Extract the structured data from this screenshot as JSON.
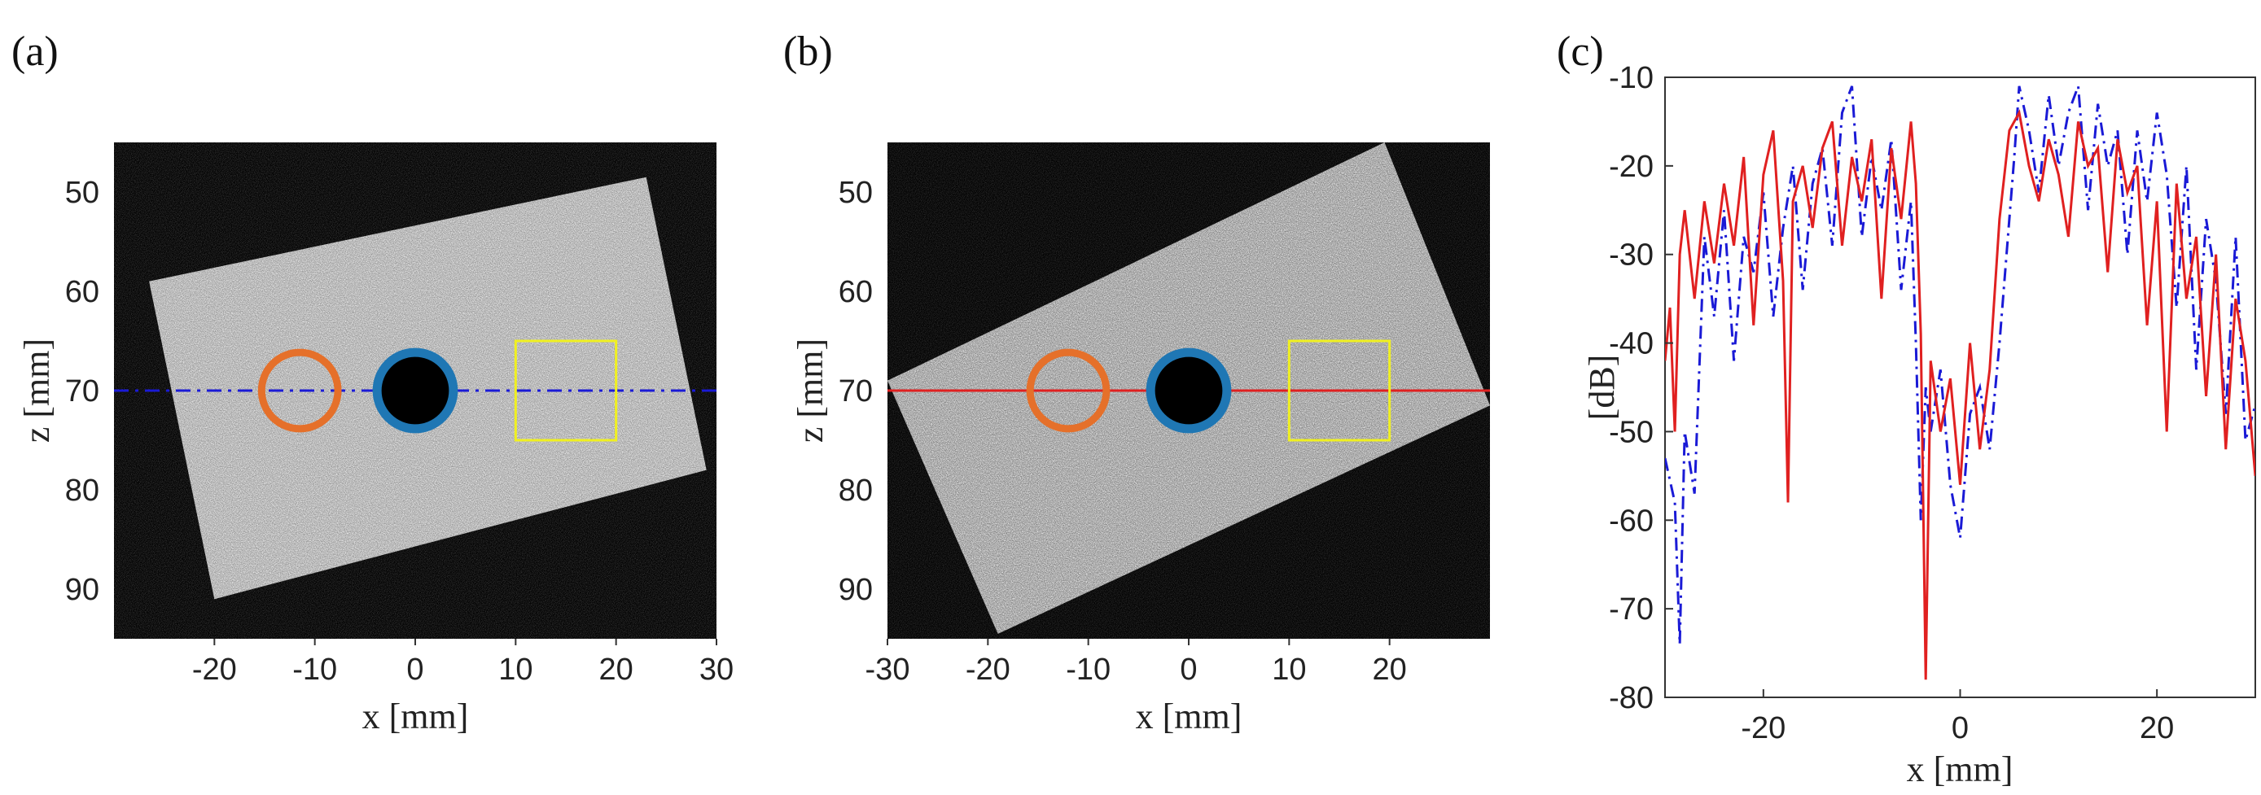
{
  "figure": {
    "panels": [
      {
        "label": "(a)",
        "xlabel": "x [mm]",
        "ylabel": "z [mm]"
      },
      {
        "label": "(b)",
        "xlabel": "x [mm]",
        "ylabel": "z [mm]"
      },
      {
        "label": "(c)",
        "xlabel": "x [mm]",
        "ylabel": "[dB]"
      }
    ]
  },
  "chart_data": [
    {
      "type": "heatmap",
      "panel": "(a)",
      "description_type": "ultrasound B-mode image (grayscale speckle), rotated phantom",
      "xlabel": "x [mm]",
      "ylabel": "z [mm]",
      "xlim": [
        -30,
        30
      ],
      "ylim": [
        95,
        45
      ],
      "xticks": [
        -20,
        -10,
        0,
        10,
        20,
        30
      ],
      "yticks": [
        50,
        60,
        70,
        80,
        90
      ],
      "phantom_corners_mm": [
        [
          -26.5,
          59
        ],
        [
          23,
          48.5
        ],
        [
          29,
          78
        ],
        [
          -20,
          91
        ]
      ],
      "overlays": {
        "scan_line": {
          "z": 70,
          "color": "#1a1ad6",
          "style": "dash-dot"
        },
        "orange_ring": {
          "cx": -11.5,
          "cz": 70,
          "r": 3.8,
          "color": "#e5702a"
        },
        "blue_ring": {
          "cx": 0,
          "cz": 70,
          "r": 3.8,
          "color": "#1f77b4"
        },
        "yellow_box": {
          "x0": 10,
          "x1": 20,
          "z0": 65,
          "z1": 75,
          "color": "#f0f020"
        }
      }
    },
    {
      "type": "heatmap",
      "panel": "(b)",
      "description_type": "ultrasound B-mode image (grayscale speckle), rotated phantom",
      "xlabel": "x [mm]",
      "ylabel": "z [mm]",
      "xlim": [
        -30,
        30
      ],
      "ylim": [
        95,
        45
      ],
      "xticks": [
        -30,
        -20,
        -10,
        0,
        10,
        20
      ],
      "yticks": [
        50,
        60,
        70,
        80,
        90
      ],
      "phantom_corners_mm": [
        [
          -30,
          69
        ],
        [
          19.5,
          45
        ],
        [
          30,
          71.5
        ],
        [
          -19,
          94.5
        ]
      ],
      "overlays": {
        "scan_line": {
          "z": 70,
          "color": "#e02020",
          "style": "solid"
        },
        "orange_ring": {
          "cx": -12,
          "cz": 70,
          "r": 3.8,
          "color": "#e5702a"
        },
        "blue_ring": {
          "cx": 0,
          "cz": 70,
          "r": 3.8,
          "color": "#1f77b4"
        },
        "yellow_box": {
          "x0": 10,
          "x1": 20,
          "z0": 65,
          "z1": 75,
          "color": "#f0f020"
        }
      }
    },
    {
      "type": "line",
      "panel": "(c)",
      "xlabel": "x [mm]",
      "ylabel": "[dB]",
      "xlim": [
        -30,
        30
      ],
      "ylim": [
        -80,
        -10
      ],
      "xticks": [
        -20,
        0,
        20
      ],
      "yticks": [
        -10,
        -20,
        -30,
        -40,
        -50,
        -60,
        -70,
        -80
      ],
      "series": [
        {
          "color": "#1a1ad6",
          "style": "dash-dot",
          "x": [
            -30,
            -29,
            -28.5,
            -28,
            -27,
            -26,
            -25,
            -24,
            -23,
            -22,
            -21,
            -20,
            -19,
            -18,
            -17,
            -16,
            -15,
            -14,
            -13,
            -12,
            -11,
            -10,
            -9,
            -8,
            -7,
            -6,
            -5,
            -4.5,
            -4,
            -3.5,
            -3,
            -2,
            -1,
            0,
            1,
            2,
            3,
            4,
            5,
            5.5,
            6,
            7,
            8,
            9,
            10,
            11,
            12,
            13,
            14,
            15,
            16,
            17,
            18,
            19,
            20,
            21,
            22,
            23,
            24,
            25,
            26,
            27,
            28,
            29,
            30
          ],
          "y": [
            -53,
            -58,
            -74,
            -50,
            -57,
            -28,
            -37,
            -25,
            -42,
            -28,
            -32,
            -23,
            -37,
            -27,
            -20,
            -34,
            -22,
            -18,
            -29,
            -14,
            -11,
            -28,
            -19,
            -25,
            -17,
            -34,
            -24,
            -40,
            -60,
            -45,
            -50,
            -43,
            -56,
            -62,
            -48,
            -45,
            -52,
            -40,
            -26,
            -19,
            -11,
            -16,
            -23,
            -12,
            -20,
            -14,
            -11,
            -25,
            -13,
            -20,
            -16,
            -30,
            -16,
            -24,
            -14,
            -21,
            -36,
            -20,
            -43,
            -26,
            -33,
            -48,
            -28,
            -51,
            -47
          ]
        },
        {
          "color": "#e02020",
          "style": "solid",
          "x": [
            -30,
            -29.5,
            -29,
            -28.5,
            -28,
            -27,
            -26,
            -25,
            -24,
            -23,
            -22,
            -21,
            -20,
            -19,
            -18,
            -17.5,
            -17,
            -16,
            -15,
            -14,
            -13,
            -12,
            -11,
            -10,
            -9,
            -8,
            -7,
            -6,
            -5,
            -4.5,
            -4,
            -3.5,
            -3,
            -2,
            -1,
            0,
            1,
            2,
            3,
            4,
            5,
            6,
            7,
            8,
            9,
            10,
            11,
            12,
            13,
            14,
            15,
            16,
            17,
            18,
            19,
            20,
            21,
            22,
            23,
            24,
            25,
            26,
            27,
            28,
            29,
            30
          ],
          "y": [
            -42,
            -36,
            -50,
            -30,
            -25,
            -35,
            -24,
            -31,
            -22,
            -29,
            -19,
            -38,
            -21,
            -16,
            -33,
            -58,
            -24,
            -20,
            -27,
            -18,
            -15,
            -29,
            -19,
            -24,
            -17,
            -35,
            -18,
            -26,
            -15,
            -22,
            -39,
            -78,
            -42,
            -50,
            -44,
            -56,
            -40,
            -52,
            -43,
            -26,
            -16,
            -14,
            -20,
            -24,
            -17,
            -21,
            -28,
            -15,
            -20,
            -18,
            -32,
            -17,
            -23,
            -20,
            -38,
            -24,
            -50,
            -22,
            -35,
            -28,
            -46,
            -30,
            -52,
            -35,
            -42,
            -55
          ]
        }
      ]
    }
  ]
}
